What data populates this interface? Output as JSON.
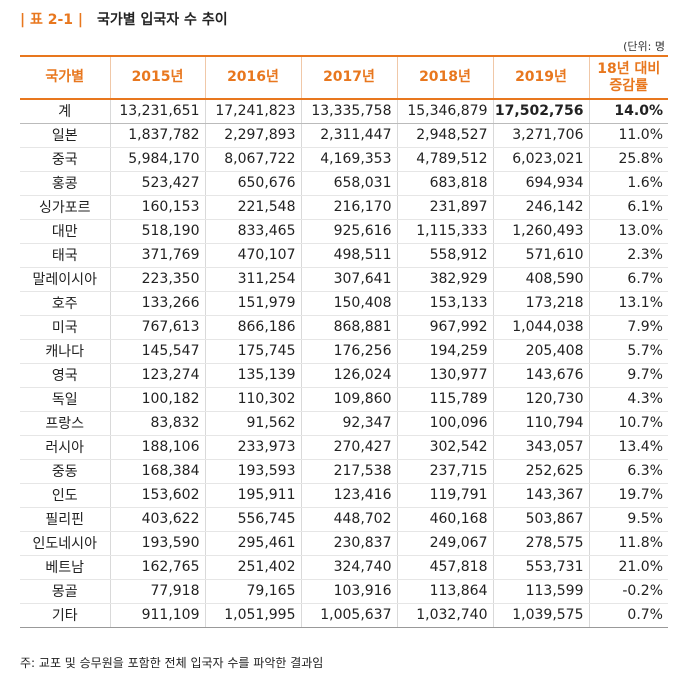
{
  "title": {
    "label": "| 표 2-1 |",
    "text": "국가별 입국자 수 추이"
  },
  "unit": "(단위: 명",
  "table": {
    "headers": [
      "국가별",
      "2015년",
      "2016년",
      "2017년",
      "2018년",
      "2019년",
      "18년 대비\n증감률"
    ],
    "rows": [
      [
        "계",
        "13,231,651",
        "17,241,823",
        "13,335,758",
        "15,346,879",
        "17,502,756",
        "14.0%"
      ],
      [
        "일본",
        "1,837,782",
        "2,297,893",
        "2,311,447",
        "2,948,527",
        "3,271,706",
        "11.0%"
      ],
      [
        "중국",
        "5,984,170",
        "8,067,722",
        "4,169,353",
        "4,789,512",
        "6,023,021",
        "25.8%"
      ],
      [
        "홍콩",
        "523,427",
        "650,676",
        "658,031",
        "683,818",
        "694,934",
        "1.6%"
      ],
      [
        "싱가포르",
        "160,153",
        "221,548",
        "216,170",
        "231,897",
        "246,142",
        "6.1%"
      ],
      [
        "대만",
        "518,190",
        "833,465",
        "925,616",
        "1,115,333",
        "1,260,493",
        "13.0%"
      ],
      [
        "태국",
        "371,769",
        "470,107",
        "498,511",
        "558,912",
        "571,610",
        "2.3%"
      ],
      [
        "말레이시아",
        "223,350",
        "311,254",
        "307,641",
        "382,929",
        "408,590",
        "6.7%"
      ],
      [
        "호주",
        "133,266",
        "151,979",
        "150,408",
        "153,133",
        "173,218",
        "13.1%"
      ],
      [
        "미국",
        "767,613",
        "866,186",
        "868,881",
        "967,992",
        "1,044,038",
        "7.9%"
      ],
      [
        "캐나다",
        "145,547",
        "175,745",
        "176,256",
        "194,259",
        "205,408",
        "5.7%"
      ],
      [
        "영국",
        "123,274",
        "135,139",
        "126,024",
        "130,977",
        "143,676",
        "9.7%"
      ],
      [
        "독일",
        "100,182",
        "110,302",
        "109,860",
        "115,789",
        "120,730",
        "4.3%"
      ],
      [
        "프랑스",
        "83,832",
        "91,562",
        "92,347",
        "100,096",
        "110,794",
        "10.7%"
      ],
      [
        "러시아",
        "188,106",
        "233,973",
        "270,427",
        "302,542",
        "343,057",
        "13.4%"
      ],
      [
        "중동",
        "168,384",
        "193,593",
        "217,538",
        "237,715",
        "252,625",
        "6.3%"
      ],
      [
        "인도",
        "153,602",
        "195,911",
        "123,416",
        "119,791",
        "143,367",
        "19.7%"
      ],
      [
        "필리핀",
        "403,622",
        "556,745",
        "448,702",
        "460,168",
        "503,867",
        "9.5%"
      ],
      [
        "인도네시아",
        "193,590",
        "295,461",
        "230,837",
        "249,067",
        "278,575",
        "11.8%"
      ],
      [
        "베트남",
        "162,765",
        "251,402",
        "324,740",
        "457,818",
        "553,731",
        "21.0%"
      ],
      [
        "몽골",
        "77,918",
        "79,165",
        "103,916",
        "113,864",
        "113,599",
        "-0.2%"
      ],
      [
        "기타",
        "911,109",
        "1,051,995",
        "1,005,637",
        "1,032,740",
        "1,039,575",
        "0.7%"
      ]
    ]
  },
  "footnote": "주: 교포 및 승무원을 포함한 전체 입국자 수를 파악한 결과임",
  "colors": {
    "accent": "#e8771e",
    "text": "#222222"
  }
}
